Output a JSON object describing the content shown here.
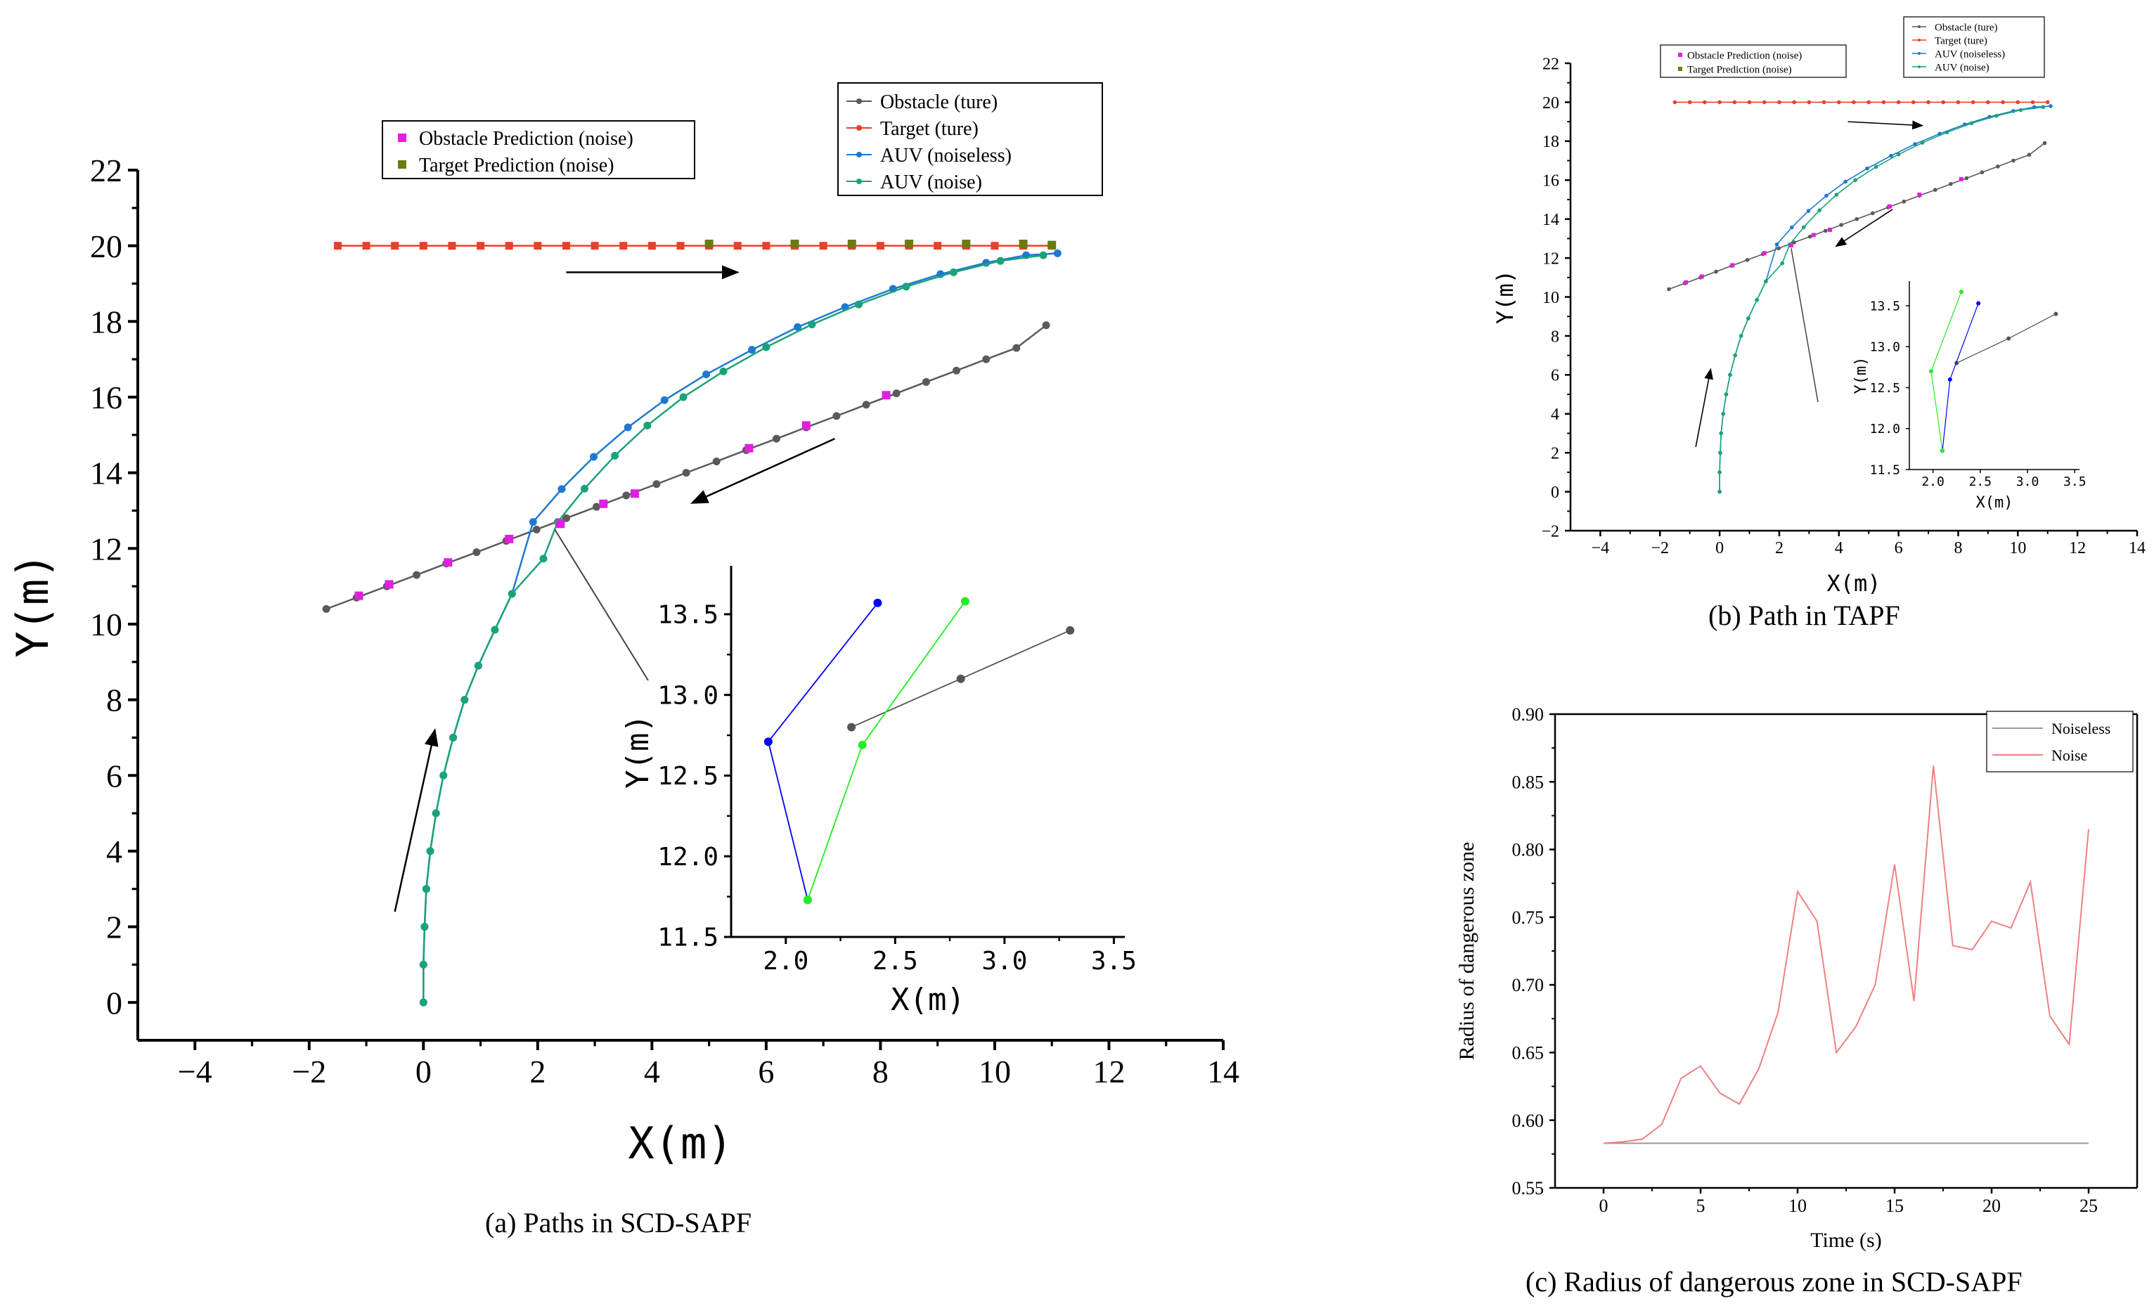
{
  "captions": {
    "a": "(a) Paths in SCD-SAPF",
    "b": "(b) Path in TAPF",
    "c": "(c) Radius of dangerous zone in SCD-SAPF"
  },
  "colors": {
    "obstacle": "#5a5a5a",
    "target": "#e8402a",
    "auv_noiseless": "#1f78d1",
    "auv_noise": "#1aa37a",
    "obstacle_pred": "#e020e0",
    "target_pred": "#6b7a12",
    "inset_noiseless": "#0000ff",
    "inset_noise": "#22ee22",
    "inset_obstacle": "#555555",
    "noiseless_line": "#9a9a9a",
    "noise_line": "#f08080"
  },
  "chart_data": [
    {
      "id": "a",
      "type": "line",
      "title": "",
      "xlabel": "X(m)",
      "ylabel": "Y(m)",
      "xlim": [
        -5,
        14
      ],
      "ylim": [
        -1,
        22
      ],
      "xticks": [
        -4,
        -2,
        0,
        2,
        4,
        6,
        8,
        10,
        12,
        14
      ],
      "yticks": [
        0,
        2,
        4,
        6,
        8,
        10,
        12,
        14,
        16,
        18,
        20,
        22
      ],
      "legend_main": [
        "Obstacle (ture)",
        "Target (ture)",
        "AUV (noiseless)",
        "AUV (noise)"
      ],
      "legend_pred": [
        "Obstacle Prediction  (noise)",
        "Target Prediction (noise)"
      ],
      "series": [
        {
          "name": "Target (ture)",
          "key": "target",
          "x": [
            -1.5,
            -1,
            -0.5,
            0,
            0.5,
            1,
            1.5,
            2,
            2.5,
            3,
            3.5,
            4,
            4.5,
            5,
            5.5,
            6,
            6.5,
            7,
            7.5,
            8,
            8.5,
            9,
            9.5,
            10,
            10.5,
            11
          ],
          "y": [
            20,
            20,
            20,
            20,
            20,
            20,
            20,
            20,
            20,
            20,
            20,
            20,
            20,
            20,
            20,
            20,
            20,
            20,
            20,
            20,
            20,
            20,
            20,
            20,
            20,
            20
          ]
        },
        {
          "name": "Obstacle (ture)",
          "key": "obstacle",
          "x": [
            -1.7,
            -1.17,
            -0.64,
            -0.12,
            0.4,
            0.93,
            1.45,
            1.98,
            2.5,
            3.03,
            3.55,
            4.08,
            4.6,
            5.13,
            5.65,
            6.18,
            6.7,
            7.23,
            7.75,
            8.28,
            8.8,
            9.33,
            9.85,
            10.38,
            10.9
          ],
          "y": [
            10.4,
            10.7,
            11.0,
            11.3,
            11.6,
            11.9,
            12.2,
            12.5,
            12.8,
            13.1,
            13.4,
            13.7,
            14.0,
            14.3,
            14.6,
            14.9,
            15.2,
            15.5,
            15.8,
            16.1,
            16.4,
            16.7,
            17.0,
            17.3,
            17.9
          ]
        },
        {
          "name": "AUV (noiseless)",
          "key": "auv_noiseless",
          "x": [
            0,
            0,
            0.02,
            0.05,
            0.12,
            0.22,
            0.35,
            0.52,
            0.72,
            0.96,
            1.25,
            1.55,
            1.92,
            2.42,
            2.98,
            3.58,
            4.22,
            4.95,
            5.75,
            6.55,
            7.38,
            8.22,
            9.05,
            9.85,
            10.55,
            11.1
          ],
          "y": [
            0,
            1,
            2,
            3,
            4,
            5,
            6,
            7,
            8,
            8.9,
            9.85,
            10.8,
            12.7,
            13.57,
            14.42,
            15.2,
            15.92,
            16.6,
            17.25,
            17.85,
            18.38,
            18.86,
            19.25,
            19.55,
            19.75,
            19.8
          ]
        },
        {
          "name": "AUV (noise)",
          "key": "auv_noise",
          "x": [
            0,
            0,
            0.02,
            0.05,
            0.12,
            0.22,
            0.35,
            0.52,
            0.72,
            0.96,
            1.25,
            1.55,
            2.1,
            2.35,
            2.82,
            3.35,
            3.92,
            4.55,
            5.25,
            6.0,
            6.8,
            7.62,
            8.45,
            9.28,
            10.1,
            10.85
          ],
          "y": [
            0,
            1,
            2,
            3,
            4,
            5,
            6,
            7,
            8,
            8.9,
            9.85,
            10.8,
            11.73,
            12.7,
            13.58,
            14.45,
            15.25,
            16.0,
            16.68,
            17.32,
            17.92,
            18.45,
            18.92,
            19.3,
            19.6,
            19.75
          ]
        },
        {
          "name": "Obstacle Prediction (noise)",
          "key": "obstacle_pred",
          "x": [
            -1.13,
            -0.6,
            0.43,
            1.5,
            2.4,
            3.15,
            3.7,
            5.7,
            6.7,
            8.1
          ],
          "y": [
            10.75,
            11.05,
            11.63,
            12.25,
            12.65,
            13.18,
            13.45,
            14.65,
            15.25,
            16.05
          ]
        },
        {
          "name": "Target Prediction (noise)",
          "key": "target_pred",
          "x": [
            5.0,
            6.5,
            7.5,
            8.5,
            9.5,
            10.5,
            11.0
          ],
          "y": [
            20.05,
            20.05,
            20.05,
            20.05,
            20.05,
            20.05,
            20.02
          ]
        }
      ],
      "arrows": [
        {
          "from": [
            -0.5,
            2.4
          ],
          "to": [
            0.2,
            7.2
          ]
        },
        {
          "from": [
            7.2,
            14.9
          ],
          "to": [
            4.7,
            13.2
          ]
        },
        {
          "from": [
            2.5,
            19.3
          ],
          "to": [
            5.5,
            19.3
          ]
        }
      ],
      "inset": {
        "xlabel": "X(m)",
        "ylabel": "Y(m)",
        "xlim": [
          1.75,
          3.55
        ],
        "ylim": [
          11.5,
          13.8
        ],
        "xticks": [
          2.0,
          2.5,
          3.0,
          3.5
        ],
        "yticks": [
          11.5,
          12.0,
          12.5,
          13.0,
          13.5
        ],
        "noiseless": {
          "x": [
            2.42,
            1.92,
            2.1
          ],
          "y": [
            13.57,
            12.71,
            11.73
          ]
        },
        "noise": {
          "x": [
            2.82,
            2.35,
            2.1
          ],
          "y": [
            13.58,
            12.69,
            11.73
          ]
        },
        "obstacle": {
          "x": [
            3.3,
            2.8,
            2.3
          ],
          "y": [
            13.4,
            13.1,
            12.8
          ]
        },
        "zoom_anchor": [
          2.3,
          12.5
        ]
      }
    },
    {
      "id": "b",
      "type": "line",
      "xlabel": "X(m)",
      "ylabel": "Y(m)",
      "xlim": [
        -5,
        14
      ],
      "ylim": [
        -2,
        22
      ],
      "xticks": [
        -4,
        -2,
        0,
        2,
        4,
        6,
        8,
        10,
        12,
        14
      ],
      "yticks": [
        -2,
        0,
        2,
        4,
        6,
        8,
        10,
        12,
        14,
        16,
        18,
        20,
        22
      ],
      "legend_main": [
        "Obstacle (ture)",
        "Target (ture)",
        "AUV (noiseless)",
        "AUV (noise)"
      ],
      "legend_pred": [
        "Obstacle Prediction  (noise)",
        "Target Prediction (noise)"
      ],
      "arrows": [
        {
          "from": [
            -0.8,
            2.3
          ],
          "to": [
            -0.3,
            6.3
          ]
        },
        {
          "from": [
            5.8,
            14.5
          ],
          "to": [
            3.9,
            12.6
          ]
        },
        {
          "from": [
            4.3,
            19.0
          ],
          "to": [
            6.8,
            18.8
          ]
        }
      ],
      "inset": {
        "xlabel": "X(m)",
        "ylabel": "Y(m)",
        "xlim": [
          1.75,
          3.55
        ],
        "ylim": [
          11.5,
          13.8
        ],
        "xticks": [
          2.0,
          2.5,
          3.0,
          3.5
        ],
        "yticks": [
          11.5,
          12.0,
          12.5,
          13.0,
          13.5
        ],
        "noiseless": {
          "x": [
            2.48,
            2.18,
            2.1
          ],
          "y": [
            13.53,
            12.6,
            11.73
          ]
        },
        "noise": {
          "x": [
            2.3,
            1.98,
            2.1
          ],
          "y": [
            13.67,
            12.7,
            11.73
          ]
        },
        "obstacle": {
          "x": [
            3.3,
            2.8,
            2.25
          ],
          "y": [
            13.4,
            13.1,
            12.8
          ]
        },
        "zoom_anchor": [
          2.4,
          12.5
        ]
      }
    },
    {
      "id": "c",
      "type": "line",
      "xlabel": "Time (s)",
      "ylabel": "Radius of dangerous zone",
      "xlim": [
        -2.5,
        27.5
      ],
      "ylim": [
        0.55,
        0.9
      ],
      "xticks": [
        0,
        5,
        10,
        15,
        20,
        25
      ],
      "yticks": [
        0.55,
        0.6,
        0.65,
        0.7,
        0.75,
        0.8,
        0.85,
        0.9
      ],
      "legend": [
        "Noiseless",
        "Noise"
      ],
      "series": [
        {
          "name": "Noiseless",
          "key": "noiseless_line",
          "x": [
            0,
            25
          ],
          "y": [
            0.583,
            0.583
          ]
        },
        {
          "name": "Noise",
          "key": "noise_line",
          "x": [
            0,
            1,
            2,
            3,
            4,
            5,
            6,
            7,
            8,
            9,
            10,
            11,
            12,
            13,
            14,
            15,
            16,
            17,
            18,
            19,
            20,
            21,
            22,
            23,
            24,
            25
          ],
          "y": [
            0.583,
            0.584,
            0.586,
            0.597,
            0.631,
            0.64,
            0.62,
            0.612,
            0.638,
            0.68,
            0.769,
            0.747,
            0.65,
            0.669,
            0.7,
            0.789,
            0.688,
            0.862,
            0.729,
            0.726,
            0.747,
            0.742,
            0.776,
            0.677,
            0.656,
            0.815
          ]
        }
      ]
    }
  ]
}
